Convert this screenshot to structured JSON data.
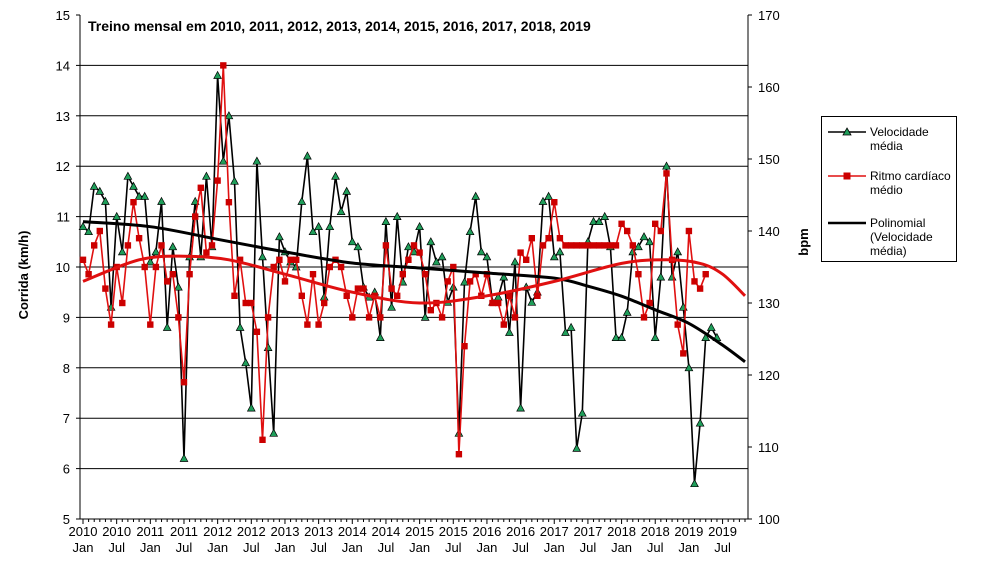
{
  "chart_data": {
    "type": "line",
    "title": "Treino mensal em 2010, 2011, 2012, 2013, 2014, 2015, 2016, 2017, 2018, 2019",
    "ylabel": "Corrida (km/h)",
    "y2label": "bpm",
    "ylim": [
      5,
      15
    ],
    "y2lim": [
      100,
      170
    ],
    "yticks": [
      "5",
      "6",
      "7",
      "8",
      "9",
      "10",
      "11",
      "12",
      "13",
      "14",
      "15"
    ],
    "y2ticks": [
      "100",
      "110",
      "120",
      "130",
      "140",
      "150",
      "160",
      "170"
    ],
    "xlim": [
      0,
      118
    ],
    "grid": true,
    "x_ticks": [
      {
        "month": 0,
        "year": "2010",
        "label": "Jan"
      },
      {
        "month": 6,
        "year": "2010",
        "label": "Jul"
      },
      {
        "month": 12,
        "year": "2011",
        "label": "Jan"
      },
      {
        "month": 18,
        "year": "2011",
        "label": "Jul"
      },
      {
        "month": 24,
        "year": "2012",
        "label": "Jan"
      },
      {
        "month": 30,
        "year": "2012",
        "label": "Jul"
      },
      {
        "month": 36,
        "year": "2013",
        "label": "Jan"
      },
      {
        "month": 42,
        "year": "2013",
        "label": "Jul"
      },
      {
        "month": 48,
        "year": "2014",
        "label": "Jan"
      },
      {
        "month": 54,
        "year": "2014",
        "label": "Jul"
      },
      {
        "month": 60,
        "year": "2015",
        "label": "Jan"
      },
      {
        "month": 66,
        "year": "2015",
        "label": "Jul"
      },
      {
        "month": 72,
        "year": "2016",
        "label": "Jan"
      },
      {
        "month": 78,
        "year": "2016",
        "label": "Jul"
      },
      {
        "month": 84,
        "year": "2017",
        "label": "Jan"
      },
      {
        "month": 90,
        "year": "2017",
        "label": "Jul"
      },
      {
        "month": 96,
        "year": "2018",
        "label": "Jan"
      },
      {
        "month": 102,
        "year": "2018",
        "label": "Jul"
      },
      {
        "month": 108,
        "year": "2019",
        "label": "Jan"
      },
      {
        "month": 114,
        "year": "2019",
        "label": "Jul"
      }
    ],
    "series": [
      {
        "name": "Velocidade média",
        "axis": "left",
        "color": "#000000",
        "marker": "triangle",
        "marker_color": "#1f9e5a",
        "values": [
          10.8,
          10.7,
          11.6,
          11.5,
          11.3,
          9.2,
          11.0,
          10.3,
          11.8,
          11.6,
          11.4,
          11.4,
          10.1,
          10.3,
          11.3,
          8.8,
          10.4,
          9.6,
          6.2,
          10.2,
          11.3,
          10.2,
          11.8,
          10.4,
          13.8,
          12.1,
          13.0,
          11.7,
          8.8,
          8.1,
          7.2,
          12.1,
          10.2,
          8.4,
          6.7,
          10.6,
          10.3,
          10.1,
          10.0,
          11.3,
          12.2,
          10.7,
          10.8,
          9.4,
          10.8,
          11.8,
          11.1,
          11.5,
          10.5,
          10.4,
          9.6,
          9.4,
          9.5,
          8.6,
          10.9,
          9.2,
          11.0,
          9.7,
          10.4,
          10.3,
          10.8,
          9.0,
          10.5,
          10.1,
          10.2,
          9.3,
          9.6,
          6.7,
          9.7,
          10.7,
          11.4,
          10.3,
          10.2,
          9.3,
          9.4,
          9.8,
          8.7,
          10.1,
          7.2,
          9.6,
          9.3,
          9.5,
          11.3,
          11.4,
          10.2,
          10.3,
          8.7,
          8.8,
          6.4,
          7.1,
          10.5,
          10.9,
          10.9,
          11.0,
          10.4,
          8.6,
          8.6,
          9.1,
          10.3,
          10.4,
          10.6,
          10.5,
          8.6,
          9.8,
          12.0,
          9.8,
          10.3,
          9.2,
          8.0,
          5.7,
          6.9,
          8.6,
          8.8,
          8.6
        ]
      },
      {
        "name": "Ritmo cardíaco médio",
        "axis": "right",
        "color": "#e01010",
        "marker": "square",
        "marker_color": "#cc0000",
        "values": [
          136,
          134,
          138,
          140,
          132,
          127,
          135,
          130,
          138,
          144,
          139,
          135,
          127,
          135,
          138,
          133,
          134,
          128,
          119,
          134,
          142,
          146,
          137,
          138,
          147,
          163,
          144,
          131,
          136,
          130,
          130,
          126,
          111,
          128,
          135,
          136,
          133,
          136,
          136,
          131,
          127,
          134,
          127,
          130,
          135,
          136,
          135,
          131,
          128,
          132,
          132,
          128,
          131,
          128,
          138,
          132,
          131,
          134,
          136,
          138,
          137,
          134,
          129,
          130,
          128,
          133,
          135,
          109,
          124,
          133,
          134,
          131,
          134,
          130,
          130,
          127,
          131,
          128,
          137,
          136,
          139,
          131,
          138,
          139,
          144,
          139,
          138,
          138,
          138,
          138,
          138,
          138,
          138,
          138,
          138,
          138,
          141,
          140,
          138,
          134,
          128,
          130,
          141,
          140,
          148,
          136,
          127,
          123,
          140,
          133,
          132,
          134
        ]
      },
      {
        "name": "Polinomial (Velocidade média)",
        "axis": "left",
        "color": "#000000",
        "marker": "none",
        "points": [
          [
            0,
            10.9
          ],
          [
            12,
            10.8
          ],
          [
            24,
            10.55
          ],
          [
            36,
            10.3
          ],
          [
            48,
            10.08
          ],
          [
            60,
            9.98
          ],
          [
            72,
            9.88
          ],
          [
            84,
            9.78
          ],
          [
            90,
            9.62
          ],
          [
            96,
            9.42
          ],
          [
            102,
            9.15
          ],
          [
            108,
            8.88
          ],
          [
            114,
            8.45
          ],
          [
            118,
            8.12
          ]
        ]
      },
      {
        "name": "Polinomial (Ritmo cardíaco médio)",
        "axis": "right",
        "color": "#e01010",
        "marker": "none",
        "points": [
          [
            0,
            133
          ],
          [
            10,
            136
          ],
          [
            18,
            136.5
          ],
          [
            26,
            136
          ],
          [
            36,
            134
          ],
          [
            48,
            131.5
          ],
          [
            60,
            130
          ],
          [
            72,
            131
          ],
          [
            84,
            133
          ],
          [
            96,
            135.5
          ],
          [
            104,
            136
          ],
          [
            110,
            135.5
          ],
          [
            114,
            134
          ],
          [
            118,
            131
          ]
        ]
      }
    ],
    "legend": {
      "position": "right",
      "entries": [
        "Velocidade média",
        "Ritmo cardíaco médio",
        "Polinomial (Velocidade média)"
      ]
    }
  },
  "legend_labels": {
    "speed": "Velocidade média",
    "heart": "Ritmo cardíaco médio",
    "poly": "Polinomial (Velocidade média)"
  }
}
